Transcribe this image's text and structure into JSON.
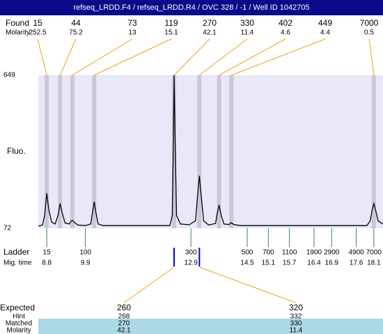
{
  "chart_data": {
    "type": "line",
    "title": "refseq_LRDD.F4 / refseq_LRDD.R4 / OVC 328 / -1 / Well ID 1042705",
    "y_label": "Fluo.",
    "color": "#000000",
    "x": [
      8.56,
      8.68,
      8.74,
      8.8,
      8.86,
      8.94,
      9.04,
      9.12,
      9.18,
      9.24,
      9.32,
      9.44,
      9.5,
      9.53,
      9.58,
      9.68,
      9.9,
      10.05,
      10.1,
      10.15,
      10.2,
      10.26,
      10.4,
      12.3,
      12.37,
      12.4,
      12.42,
      12.45,
      12.49,
      12.6,
      12.85,
      13.03,
      13.08,
      13.14,
      13.2,
      13.26,
      13.4,
      13.6,
      13.65,
      13.7,
      13.76,
      13.84,
      13.98,
      14.05,
      14.12,
      14.3,
      17.9,
      18.0,
      18.05,
      18.1,
      18.15,
      18.22,
      18.36
    ],
    "y": [
      80,
      84,
      120,
      204,
      140,
      95,
      88,
      120,
      165,
      130,
      92,
      88,
      100,
      101,
      95,
      84,
      82,
      88,
      130,
      172,
      130,
      88,
      82,
      82,
      120,
      400,
      649,
      400,
      120,
      88,
      85,
      100,
      180,
      270,
      180,
      100,
      84,
      90,
      130,
      159,
      120,
      88,
      86,
      93,
      86,
      82,
      82,
      100,
      140,
      165,
      140,
      100,
      88
    ],
    "xlim": [
      8.56,
      18.36
    ],
    "ylim": [
      72,
      649
    ],
    "yticks": [
      72,
      649
    ],
    "xticks": [
      8.8,
      9.9,
      12.9,
      14.5,
      15.1,
      15.7,
      16.4,
      16.9,
      17.6,
      18.1
    ],
    "x_label": "Mig. time"
  },
  "found": {
    "label": "Found",
    "molarity_label": "Molarity",
    "sizes": [
      15,
      44,
      73,
      119,
      270,
      330,
      402,
      449,
      7000
    ],
    "molarity": [
      252.5,
      75.2,
      13,
      15.1,
      42.1,
      11.4,
      4.6,
      4.4,
      0.5
    ],
    "x": [
      8.8,
      9.18,
      9.53,
      10.15,
      12.42,
      13.14,
      13.7,
      14.05,
      18.1
    ]
  },
  "ladder": {
    "label": "Ladder",
    "sizes": [
      15,
      100,
      300,
      500,
      700,
      1100,
      1900,
      2900,
      4900,
      7000
    ]
  },
  "expected": {
    "label": "Expected",
    "hint_label": "Hint",
    "matched_label": "Matched",
    "molarity_label": "Molarity",
    "values": [
      260,
      320
    ],
    "hint": [
      268,
      332
    ],
    "matched": [
      270,
      330
    ],
    "molarity": [
      42.1,
      11.4
    ],
    "x": [
      12.42,
      13.14
    ]
  }
}
